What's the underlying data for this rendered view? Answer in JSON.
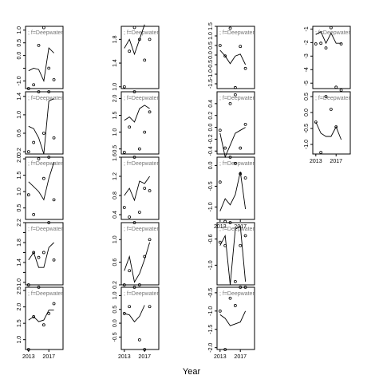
{
  "figure": {
    "xlabel": "Year"
  },
  "chart_data": [
    {
      "type": "line",
      "row": 0,
      "col": 0,
      "title": "f=Deepwater",
      "x": [
        2013,
        2014,
        2015,
        2016,
        2017,
        2018,
        2019
      ],
      "line": [
        -0.6,
        -0.5,
        -0.55,
        -1.0,
        0.3,
        0.1,
        null
      ],
      "points": [
        -1.3,
        -1.15,
        0.4,
        1.1,
        -0.5,
        -0.95,
        null
      ],
      "ylim": [
        -1.3,
        1.15
      ],
      "yticks": [
        -1.0,
        -0.5,
        0.0,
        0.5,
        1.0
      ],
      "yticklabels": [
        "-1.0",
        "",
        "0.0",
        "0.5",
        "1.0"
      ],
      "xticks_shown": false
    },
    {
      "type": "line",
      "row": 0,
      "col": 1,
      "title": "f=Deepwater",
      "x": [
        2013,
        2014,
        2015,
        2016,
        2017,
        2018
      ],
      "line": [
        1.65,
        1.8,
        1.55,
        1.8,
        2.05,
        null
      ],
      "points": [
        1.0,
        1.6,
        2.0,
        1.8,
        1.45,
        1.8
      ],
      "ylim": [
        0.97,
        2.02
      ],
      "yticks": [
        1.0,
        1.4,
        1.8
      ],
      "yticklabels": [
        "1.0",
        "1.4",
        "1.8"
      ],
      "xticks_shown": false
    },
    {
      "type": "line",
      "row": 0,
      "col": 2,
      "title": "f=Deepwater",
      "x": [
        2013,
        2014,
        2015,
        2016,
        2017,
        2018
      ],
      "line": [
        0.25,
        -0.05,
        -0.45,
        -0.05,
        0.05,
        -0.5
      ],
      "points": [
        0.5,
        -0.05,
        1.4,
        -1.7,
        0.45,
        -0.7
      ],
      "ylim": [
        -1.75,
        1.5
      ],
      "yticks": [
        -1.5,
        -1.0,
        -0.5,
        0.0,
        0.5,
        1.0,
        1.5
      ],
      "yticklabels": [
        "-1.5",
        "-1.0",
        "-0.5",
        "0.0",
        "0.5",
        "1.0",
        "1.5"
      ],
      "xticks_shown": false
    },
    {
      "type": "line",
      "row": 0,
      "col": 3,
      "title": "f=Deepwater",
      "x": [
        2013,
        2014,
        2015,
        2016,
        2017,
        2018
      ],
      "line": [
        -1.4,
        -1.2,
        -2.05,
        -1.3,
        -2.05,
        -2.05
      ],
      "points": [
        -2.1,
        -2.05,
        -2.4,
        -0.9,
        -5.3,
        -2.1
      ],
      "ylim": [
        -5.4,
        -0.8
      ],
      "yticks": [
        -5,
        -4,
        -3,
        -2,
        -1
      ],
      "yticklabels": [
        "-5",
        "-4",
        "-3",
        "-2",
        "-1"
      ],
      "xticks_shown": false
    },
    {
      "type": "line",
      "row": 1,
      "col": 0,
      "title": "f=Deepwater",
      "x": [
        2013,
        2014,
        2015,
        2016,
        2017,
        2018
      ],
      "line": [
        0.75,
        0.7,
        0.5,
        0.15,
        1.3,
        1.35
      ],
      "points": [
        0.2,
        0.4,
        1.5,
        0.6,
        1.5,
        0.5
      ],
      "ylim": [
        0.15,
        1.5
      ],
      "yticks": [
        0.2,
        0.6,
        1.0,
        1.4
      ],
      "yticklabels": [
        "0.2",
        "0.6",
        "1.0",
        "1.4"
      ],
      "xticks_shown": false
    },
    {
      "type": "line",
      "row": 1,
      "col": 1,
      "title": "f=Deepwater",
      "x": [
        2013,
        2014,
        2015,
        2016,
        2017,
        2018
      ],
      "line": [
        1.35,
        1.45,
        1.3,
        1.7,
        1.8,
        1.7
      ],
      "points": [
        0.4,
        1.15,
        2.2,
        0.5,
        1.0,
        1.6
      ],
      "ylim": [
        0.35,
        2.2
      ],
      "yticks": [
        0.5,
        1.0,
        1.5,
        2.0
      ],
      "yticklabels": [
        "0.5",
        "1.0",
        "1.5",
        "2.0"
      ],
      "xticks_shown": false
    },
    {
      "type": "line",
      "row": 1,
      "col": 2,
      "title": "f=Deepwater",
      "x": [
        2013,
        2014,
        2015,
        2016,
        2017,
        2018
      ],
      "line": [
        -0.1,
        -0.5,
        -0.3,
        -0.1,
        -0.05,
        0.0
      ],
      "points": [
        -0.05,
        -0.35,
        0.4,
        0.55,
        -0.35,
        0.05
      ],
      "ylim": [
        -0.45,
        0.6
      ],
      "yticks": [
        -0.4,
        -0.2,
        0.0,
        0.2,
        0.4
      ],
      "yticklabels": [
        "-0.4",
        "-0.2",
        "0.0",
        "0.2",
        "0.4"
      ],
      "xticks_shown": false
    },
    {
      "type": "line",
      "row": 1,
      "col": 3,
      "title": "f=Deepwater",
      "x": [
        2013,
        2014,
        2015,
        2016,
        2017,
        2018
      ],
      "line": [
        -0.3,
        -0.65,
        -0.75,
        -0.75,
        -0.45,
        -0.85
      ],
      "points": [
        -0.3,
        -1.25,
        0.5,
        0.1,
        -0.45,
        0.7
      ],
      "ylim": [
        -1.3,
        0.65
      ],
      "yticks": [
        -1.0,
        -0.5,
        0.0,
        0.5
      ],
      "yticklabels": [
        "-1.0",
        "-0.5",
        "0.0",
        "0.5"
      ],
      "xticks_shown": true,
      "xticks": [
        2013,
        2017
      ],
      "xticklabels": [
        "2013",
        "2017"
      ]
    },
    {
      "type": "line",
      "row": 2,
      "col": 0,
      "title": "f=Deepwater",
      "x": [
        2013,
        2014,
        2015,
        2016,
        2017,
        2018
      ],
      "line": [
        1.3,
        1.15,
        1.0,
        0.75,
        1.4,
        1.9
      ],
      "points": [
        0.9,
        0.3,
        2.0,
        1.4,
        2.05,
        0.75
      ],
      "ylim": [
        0.15,
        2.05
      ],
      "yticks": [
        0.5,
        1.0,
        1.5,
        2.0
      ],
      "yticklabels": [
        "0.5",
        "1.0",
        "1.5",
        "2.0"
      ],
      "xticks_shown": false
    },
    {
      "type": "line",
      "row": 2,
      "col": 1,
      "title": "f=Deepwater",
      "x": [
        2013,
        2014,
        2015,
        2016,
        2017,
        2018
      ],
      "line": [
        0.8,
        0.95,
        0.7,
        1.1,
        1.05,
        1.2
      ],
      "points": [
        0.55,
        0.35,
        1.6,
        0.45,
        0.95,
        0.9
      ],
      "ylim": [
        0.3,
        1.6
      ],
      "yticks": [
        0.4,
        0.8,
        1.2,
        1.6
      ],
      "yticklabels": [
        "0.4",
        "0.8",
        "1.2",
        "1.6"
      ],
      "xticks_shown": false
    },
    {
      "type": "line",
      "row": 2,
      "col": 2,
      "title": "f=Deepwater",
      "x": [
        2013,
        2014,
        2015,
        2016,
        2017,
        2018
      ],
      "line": [
        -1.1,
        -0.8,
        -0.95,
        -0.7,
        -0.15,
        -1.05
      ],
      "points": [
        -0.4,
        -1.35,
        0.2,
        0.05,
        -0.2,
        -0.3
      ],
      "ylim": [
        -1.3,
        0.2
      ],
      "yticks": [
        -1.0,
        -0.5,
        0.0
      ],
      "yticklabels": [
        "-1.0",
        "-0.5",
        "0.0"
      ],
      "xticks_shown": true,
      "xticks": [
        2013,
        2017
      ],
      "xticklabels": [
        "2013",
        "2017"
      ]
    },
    {
      "type": "line",
      "row": 3,
      "col": 0,
      "title": "f=Deepwater",
      "x": [
        2013,
        2014,
        2015,
        2016,
        2017,
        2018
      ],
      "line": [
        1.45,
        1.6,
        1.3,
        1.3,
        1.7,
        1.8
      ],
      "points": [
        0.95,
        1.6,
        1.5,
        1.6,
        2.2,
        1.45
      ],
      "ylim": [
        0.95,
        2.2
      ],
      "yticks": [
        1.0,
        1.2,
        1.4,
        1.6,
        1.8,
        2.0,
        2.2
      ],
      "yticklabels": [
        "1.0",
        "",
        "1.4",
        "",
        "1.8",
        "",
        "2.2"
      ],
      "xticks_shown": false
    },
    {
      "type": "line",
      "row": 3,
      "col": 1,
      "title": "f=Deepwater",
      "x": [
        2013,
        2014,
        2015,
        2016,
        2017,
        2018
      ],
      "line": [
        0.45,
        0.7,
        0.25,
        0.4,
        0.65,
        0.95
      ],
      "points": [
        0.2,
        0.45,
        1.3,
        0.2,
        0.7,
        1.0
      ],
      "ylim": [
        0.2,
        1.3
      ],
      "yticks": [
        0.2,
        0.6,
        1.0
      ],
      "yticklabels": [
        "0.2",
        "0.6",
        "1.0"
      ],
      "xticks_shown": false
    },
    {
      "type": "line",
      "row": 3,
      "col": 2,
      "title": "f=Deepwater",
      "x": [
        2013,
        2014,
        2015,
        2016,
        2017,
        2018
      ],
      "line": [
        -0.7,
        -0.55,
        -1.3,
        -0.45,
        -0.4,
        -1.25
      ],
      "points": [
        -0.65,
        -0.7,
        -0.35,
        -1.25,
        -0.7,
        -0.55
      ],
      "ylim": [
        -1.3,
        -0.35
      ],
      "yticks": [
        -1.0,
        -0.6
      ],
      "yticklabels": [
        "-1.0",
        "-0.6"
      ],
      "xticks_shown": false
    },
    {
      "type": "line",
      "row": 4,
      "col": 0,
      "title": "f=Deepwater",
      "x": [
        2013,
        2014,
        2015,
        2016,
        2017,
        2018
      ],
      "line": [
        1.6,
        1.7,
        1.55,
        1.6,
        1.9,
        1.9
      ],
      "points": [
        0.7,
        1.7,
        2.6,
        1.45,
        1.8,
        2.1
      ],
      "ylim": [
        0.7,
        2.6
      ],
      "yticks": [
        1.0,
        1.5,
        2.0,
        2.5
      ],
      "yticklabels": [
        "1.0",
        "1.5",
        "2.0",
        "2.5"
      ],
      "xticks_shown": true,
      "xticks": [
        2013,
        2017
      ],
      "xticklabels": [
        "2013",
        "2017"
      ]
    },
    {
      "type": "line",
      "row": 4,
      "col": 1,
      "title": "f=Deepwater",
      "x": [
        2013,
        2014,
        2015,
        2016,
        2017,
        2018
      ],
      "line": [
        0.35,
        0.3,
        0.05,
        0.25,
        0.65,
        null
      ],
      "points": [
        0.35,
        0.6,
        1.3,
        -0.6,
        -0.95,
        0.6
      ],
      "ylim": [
        -0.95,
        1.3
      ],
      "yticks": [
        -0.5,
        0.0,
        0.5,
        1.0
      ],
      "yticklabels": [
        "-0.5",
        "0.0",
        "0.5",
        "1.0"
      ],
      "xticks_shown": true,
      "xticks": [
        2013,
        2017
      ],
      "xticklabels": [
        "2013",
        "2017"
      ]
    },
    {
      "type": "line",
      "row": 4,
      "col": 2,
      "title": "f=Deepwater",
      "x": [
        2013,
        2014,
        2015,
        2016,
        2017,
        2018
      ],
      "line": [
        -1.1,
        -1.2,
        -1.4,
        -1.35,
        -1.3,
        -1.0
      ],
      "points": [
        -1.0,
        -2.05,
        -0.65,
        -0.85,
        -0.35,
        -0.35
      ],
      "ylim": [
        -2.05,
        -0.35
      ],
      "yticks": [
        -2.0,
        -1.5,
        -1.0,
        -0.5
      ],
      "yticklabels": [
        "-2.0",
        "-1.5",
        "-1.0",
        "-0.5"
      ],
      "xticks_shown": true,
      "xticks": [
        2013,
        2017
      ],
      "xticklabels": [
        "2013",
        "2017"
      ]
    }
  ]
}
